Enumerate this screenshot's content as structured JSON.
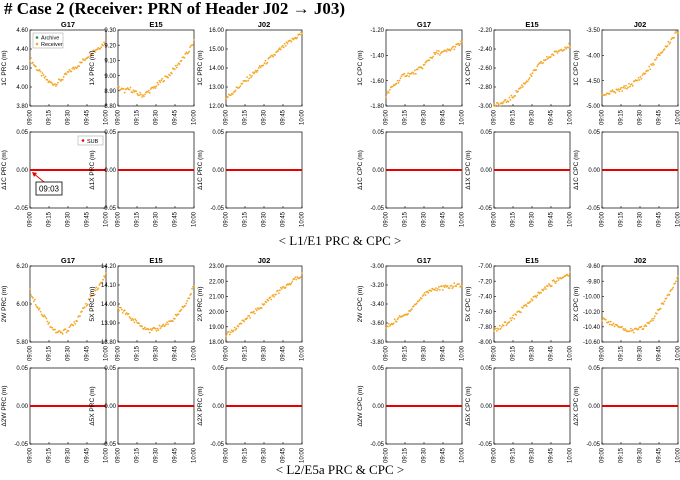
{
  "page": {
    "title": "# Case 2 (Receiver: PRN of Header J02 → J03)",
    "section_captions": [
      "< L1/E1 PRC & CPC >",
      "< L2/E5a PRC & CPC >"
    ]
  },
  "colors": {
    "receiver": "#f5a623",
    "archive": "#2e8b57",
    "sub": "#e60000",
    "annotation": "#e60000"
  },
  "x_ticks": [
    "09:00",
    "09:15",
    "09:30",
    "09:45",
    "10:00"
  ],
  "chart_data": [
    {
      "type": "scatter",
      "panel": "L1 PRC G17",
      "title": "G17",
      "ylabel": "1C PRC (m)",
      "ylim": [
        3.8,
        4.6
      ],
      "yticks": [
        "3.80",
        "4.00",
        "4.20",
        "4.40",
        "4.60"
      ],
      "x": [
        "09:00",
        "09:05",
        "09:10",
        "09:15",
        "09:20",
        "09:25",
        "09:30",
        "09:35",
        "09:40",
        "09:45",
        "09:50",
        "09:55",
        "10:00"
      ],
      "series": [
        {
          "name": "Receiver",
          "values": [
            4.3,
            4.2,
            4.12,
            4.05,
            4.03,
            4.08,
            4.15,
            4.2,
            4.25,
            4.32,
            4.38,
            4.42,
            4.48
          ]
        }
      ],
      "legend": {
        "position": "top-left",
        "entries": [
          "Archive",
          "Receiver"
        ]
      }
    },
    {
      "type": "scatter",
      "panel": "L1 PRC E15",
      "title": "E15",
      "ylabel": "1X PRC (m)",
      "ylim": [
        8.8,
        9.3
      ],
      "yticks": [
        "8.80",
        "8.90",
        "9.00",
        "9.10",
        "9.20",
        "9.30"
      ],
      "x": [
        "09:00",
        "09:05",
        "09:10",
        "09:15",
        "09:20",
        "09:25",
        "09:30",
        "09:35",
        "09:40",
        "09:45",
        "09:50",
        "09:55",
        "10:00"
      ],
      "series": [
        {
          "name": "Receiver",
          "values": [
            8.92,
            8.9,
            8.91,
            8.88,
            8.87,
            8.9,
            8.93,
            8.97,
            9.0,
            9.05,
            9.1,
            9.15,
            9.22
          ]
        }
      ]
    },
    {
      "type": "scatter",
      "panel": "L1 PRC J02",
      "title": "J02",
      "ylabel": "1C PRC (m)",
      "ylim": [
        12,
        16
      ],
      "yticks": [
        "12.00",
        "13.00",
        "14.00",
        "15.00",
        "16.00"
      ],
      "x": [
        "09:00",
        "09:05",
        "09:10",
        "09:15",
        "09:20",
        "09:25",
        "09:30",
        "09:35",
        "09:40",
        "09:45",
        "09:50",
        "09:55",
        "10:00"
      ],
      "series": [
        {
          "name": "Receiver",
          "values": [
            12.4,
            12.7,
            13.0,
            13.3,
            13.6,
            13.9,
            14.2,
            14.5,
            14.8,
            15.1,
            15.35,
            15.6,
            15.85
          ]
        }
      ]
    },
    {
      "type": "scatter",
      "panel": "L1 CPC G17",
      "title": "G17",
      "ylabel": "1C CPC (m)",
      "ylim": [
        -1.8,
        -1.2
      ],
      "yticks": [
        "-1.80",
        "-1.60",
        "-1.40",
        "-1.20"
      ],
      "x": [
        "09:00",
        "09:05",
        "09:10",
        "09:15",
        "09:20",
        "09:25",
        "09:30",
        "09:35",
        "09:40",
        "09:45",
        "09:50",
        "09:55",
        "10:00"
      ],
      "series": [
        {
          "name": "Receiver",
          "values": [
            -1.72,
            -1.65,
            -1.6,
            -1.55,
            -1.55,
            -1.52,
            -1.48,
            -1.42,
            -1.38,
            -1.38,
            -1.36,
            -1.33,
            -1.3
          ]
        }
      ]
    },
    {
      "type": "scatter",
      "panel": "L1 CPC E15",
      "title": "E15",
      "ylabel": "1X CPC (m)",
      "ylim": [
        -3.0,
        -2.2
      ],
      "yticks": [
        "-3.00",
        "-2.80",
        "-2.60",
        "-2.40",
        "-2.20"
      ],
      "x": [
        "09:00",
        "09:05",
        "09:10",
        "09:15",
        "09:20",
        "09:25",
        "09:30",
        "09:35",
        "09:40",
        "09:45",
        "09:50",
        "09:55",
        "10:00"
      ],
      "series": [
        {
          "name": "Receiver",
          "values": [
            -3.0,
            -2.98,
            -2.95,
            -2.9,
            -2.82,
            -2.75,
            -2.67,
            -2.58,
            -2.52,
            -2.47,
            -2.43,
            -2.39,
            -2.36
          ]
        }
      ]
    },
    {
      "type": "scatter",
      "panel": "L1 CPC J02",
      "title": "J02",
      "ylabel": "1C CPC (m)",
      "ylim": [
        -5.0,
        -3.5
      ],
      "yticks": [
        "-5.00",
        "-4.50",
        "-4.00",
        "-3.50"
      ],
      "x": [
        "09:00",
        "09:05",
        "09:10",
        "09:15",
        "09:20",
        "09:25",
        "09:30",
        "09:35",
        "09:40",
        "09:45",
        "09:50",
        "09:55",
        "10:00"
      ],
      "series": [
        {
          "name": "Receiver",
          "values": [
            -4.78,
            -4.75,
            -4.72,
            -4.68,
            -4.62,
            -4.55,
            -4.45,
            -4.32,
            -4.18,
            -4.0,
            -3.85,
            -3.68,
            -3.52
          ]
        }
      ]
    },
    {
      "type": "scatter",
      "panel": "L1 ΔPRC G17",
      "ylabel": "Δ1C PRC (m)",
      "ylim": [
        -0.05,
        0.05
      ],
      "yticks": [
        "-0.05",
        "0.00",
        "0.05"
      ],
      "series": [
        {
          "name": "SUB",
          "values": [
            0,
            0,
            0,
            0,
            0
          ]
        }
      ],
      "legend": {
        "position": "top-right",
        "entries": [
          "SUB"
        ]
      },
      "annotation": {
        "text": "09:03"
      }
    },
    {
      "type": "scatter",
      "panel": "L1 ΔPRC E15",
      "ylabel": "Δ1X PRC (m)",
      "ylim": [
        -0.05,
        0.05
      ],
      "yticks": [
        "-0.05",
        "0.00",
        "0.05"
      ],
      "series": [
        {
          "name": "SUB",
          "values": [
            0,
            0,
            0,
            0,
            0
          ]
        }
      ]
    },
    {
      "type": "scatter",
      "panel": "L1 ΔPRC J02",
      "ylabel": "Δ1C PRC (m)",
      "ylim": [
        -0.05,
        0.05
      ],
      "yticks": [
        "-0.05",
        "0.00",
        "0.05"
      ],
      "series": [
        {
          "name": "SUB",
          "values": [
            0,
            0,
            0,
            0,
            0
          ]
        }
      ]
    },
    {
      "type": "scatter",
      "panel": "L1 ΔCPC G17",
      "ylabel": "Δ1C CPC (m)",
      "ylim": [
        -0.05,
        0.05
      ],
      "yticks": [
        "-0.05",
        "0.00",
        "0.05"
      ],
      "series": [
        {
          "name": "SUB",
          "values": [
            0,
            0,
            0,
            0,
            0
          ]
        }
      ]
    },
    {
      "type": "scatter",
      "panel": "L1 ΔCPC E15",
      "ylabel": "Δ1X CPC (m)",
      "ylim": [
        -0.05,
        0.05
      ],
      "yticks": [
        "-0.05",
        "0.00",
        "0.05"
      ],
      "series": [
        {
          "name": "SUB",
          "values": [
            0,
            0,
            0,
            0,
            0
          ]
        }
      ]
    },
    {
      "type": "scatter",
      "panel": "L1 ΔCPC J02",
      "ylabel": "Δ1C CPC (m)",
      "ylim": [
        -0.05,
        0.05
      ],
      "yticks": [
        "-0.05",
        "0.00",
        "0.05"
      ],
      "series": [
        {
          "name": "SUB",
          "values": [
            0,
            0,
            0,
            0,
            0
          ]
        }
      ]
    },
    {
      "type": "scatter",
      "panel": "L2 PRC G17",
      "title": "G17",
      "ylabel": "2W PRC (m)",
      "ylim": [
        5.8,
        6.4
      ],
      "yticks": [
        "5.80",
        "6.00",
        "6.20"
      ],
      "x": [
        "09:00",
        "09:05",
        "09:10",
        "09:15",
        "09:20",
        "09:25",
        "09:30",
        "09:35",
        "09:40",
        "09:45",
        "09:50",
        "09:55",
        "10:00"
      ],
      "series": [
        {
          "name": "Receiver",
          "values": [
            6.2,
            6.1,
            6.02,
            5.95,
            5.88,
            5.87,
            5.9,
            5.95,
            6.02,
            6.1,
            6.18,
            6.25,
            6.33
          ]
        }
      ]
    },
    {
      "type": "scatter",
      "panel": "L2 PRC E15",
      "title": "E15",
      "ylabel": "5X PRC (m)",
      "ylim": [
        13.8,
        14.2
      ],
      "yticks": [
        "13.80",
        "13.90",
        "14.00",
        "14.10",
        "14.20"
      ],
      "x": [
        "09:00",
        "09:05",
        "09:10",
        "09:15",
        "09:20",
        "09:25",
        "09:30",
        "09:35",
        "09:40",
        "09:45",
        "09:50",
        "09:55",
        "10:00"
      ],
      "series": [
        {
          "name": "Receiver",
          "values": [
            13.98,
            13.96,
            13.93,
            13.9,
            13.88,
            13.86,
            13.87,
            13.88,
            13.9,
            13.93,
            13.97,
            14.02,
            14.1
          ]
        }
      ]
    },
    {
      "type": "scatter",
      "panel": "L2 PRC J02",
      "title": "J02",
      "ylabel": "2X PRC (m)",
      "ylim": [
        18,
        23
      ],
      "yticks": [
        "18.00",
        "19.00",
        "20.00",
        "21.00",
        "22.00",
        "23.00"
      ],
      "x": [
        "09:00",
        "09:05",
        "09:10",
        "09:15",
        "09:20",
        "09:25",
        "09:30",
        "09:35",
        "09:40",
        "09:45",
        "09:50",
        "09:55",
        "10:00"
      ],
      "series": [
        {
          "name": "Receiver",
          "values": [
            18.4,
            18.75,
            19.1,
            19.45,
            19.8,
            20.15,
            20.5,
            20.85,
            21.2,
            21.55,
            21.85,
            22.15,
            22.45
          ]
        }
      ]
    },
    {
      "type": "scatter",
      "panel": "L2 CPC G17",
      "title": "G17",
      "ylabel": "2W CPC (m)",
      "ylim": [
        -3.8,
        -3.0
      ],
      "yticks": [
        "-3.80",
        "-3.60",
        "-3.40",
        "-3.20",
        "-3.00"
      ],
      "x": [
        "09:00",
        "09:05",
        "09:10",
        "09:15",
        "09:20",
        "09:25",
        "09:30",
        "09:35",
        "09:40",
        "09:45",
        "09:50",
        "09:55",
        "10:00"
      ],
      "series": [
        {
          "name": "Receiver",
          "values": [
            -3.65,
            -3.6,
            -3.55,
            -3.52,
            -3.45,
            -3.38,
            -3.3,
            -3.25,
            -3.24,
            -3.23,
            -3.22,
            -3.2,
            -3.2
          ]
        }
      ]
    },
    {
      "type": "scatter",
      "panel": "L2 CPC E15",
      "title": "E15",
      "ylabel": "5X CPC (m)",
      "ylim": [
        -8.0,
        -7.0
      ],
      "yticks": [
        "-8.00",
        "-7.80",
        "-7.60",
        "-7.40",
        "-7.20",
        "-7.00"
      ],
      "x": [
        "09:00",
        "09:05",
        "09:10",
        "09:15",
        "09:20",
        "09:25",
        "09:30",
        "09:35",
        "09:40",
        "09:45",
        "09:50",
        "09:55",
        "10:00"
      ],
      "series": [
        {
          "name": "Receiver",
          "values": [
            -7.85,
            -7.8,
            -7.75,
            -7.68,
            -7.6,
            -7.52,
            -7.45,
            -7.37,
            -7.3,
            -7.24,
            -7.18,
            -7.14,
            -7.1
          ]
        }
      ]
    },
    {
      "type": "scatter",
      "panel": "L2 CPC J02",
      "title": "J02",
      "ylabel": "2X CPC (m)",
      "ylim": [
        -10.6,
        -9.6
      ],
      "yticks": [
        "-10.60",
        "-10.40",
        "-10.20",
        "-10.00",
        "-9.80",
        "-9.60"
      ],
      "x": [
        "09:00",
        "09:05",
        "09:10",
        "09:15",
        "09:20",
        "09:25",
        "09:30",
        "09:35",
        "09:40",
        "09:45",
        "09:50",
        "09:55",
        "10:00"
      ],
      "series": [
        {
          "name": "Receiver",
          "values": [
            -10.3,
            -10.34,
            -10.38,
            -10.42,
            -10.44,
            -10.45,
            -10.43,
            -10.38,
            -10.3,
            -10.18,
            -10.04,
            -9.9,
            -9.72
          ]
        }
      ]
    },
    {
      "type": "scatter",
      "panel": "L2 ΔPRC G17",
      "ylabel": "Δ2W PRC (m)",
      "ylim": [
        -0.05,
        0.05
      ],
      "yticks": [
        "-0.05",
        "0.00",
        "0.05"
      ],
      "series": [
        {
          "name": "SUB",
          "values": [
            0,
            0,
            0,
            0,
            0
          ]
        }
      ]
    },
    {
      "type": "scatter",
      "panel": "L2 ΔPRC E15",
      "ylabel": "Δ5X PRC (m)",
      "ylim": [
        -0.05,
        0.05
      ],
      "yticks": [
        "-0.05",
        "0.00",
        "0.05"
      ],
      "series": [
        {
          "name": "SUB",
          "values": [
            0,
            0,
            0,
            0,
            0
          ]
        }
      ]
    },
    {
      "type": "scatter",
      "panel": "L2 ΔPRC J02",
      "ylabel": "Δ2X PRC (m)",
      "ylim": [
        -0.05,
        0.05
      ],
      "yticks": [
        "-0.05",
        "0.00",
        "0.05"
      ],
      "series": [
        {
          "name": "SUB",
          "values": [
            0,
            0,
            0,
            0,
            0
          ]
        }
      ]
    },
    {
      "type": "scatter",
      "panel": "L2 ΔCPC G17",
      "ylabel": "Δ2W CPC (m)",
      "ylim": [
        -0.05,
        0.05
      ],
      "yticks": [
        "-0.05",
        "0.00",
        "0.05"
      ],
      "series": [
        {
          "name": "SUB",
          "values": [
            0,
            0,
            0,
            0,
            0
          ]
        }
      ]
    },
    {
      "type": "scatter",
      "panel": "L2 ΔCPC E15",
      "ylabel": "Δ5X CPC (m)",
      "ylim": [
        -0.05,
        0.05
      ],
      "yticks": [
        "-0.05",
        "0.00",
        "0.05"
      ],
      "series": [
        {
          "name": "SUB",
          "values": [
            0,
            0,
            0,
            0,
            0
          ]
        }
      ]
    },
    {
      "type": "scatter",
      "panel": "L2 ΔCPC J02",
      "ylabel": "Δ2X CPC (m)",
      "ylim": [
        -0.05,
        0.05
      ],
      "yticks": [
        "-0.05",
        "0.00",
        "0.05"
      ],
      "series": [
        {
          "name": "SUB",
          "values": [
            0,
            0,
            0,
            0,
            0
          ]
        }
      ]
    }
  ]
}
